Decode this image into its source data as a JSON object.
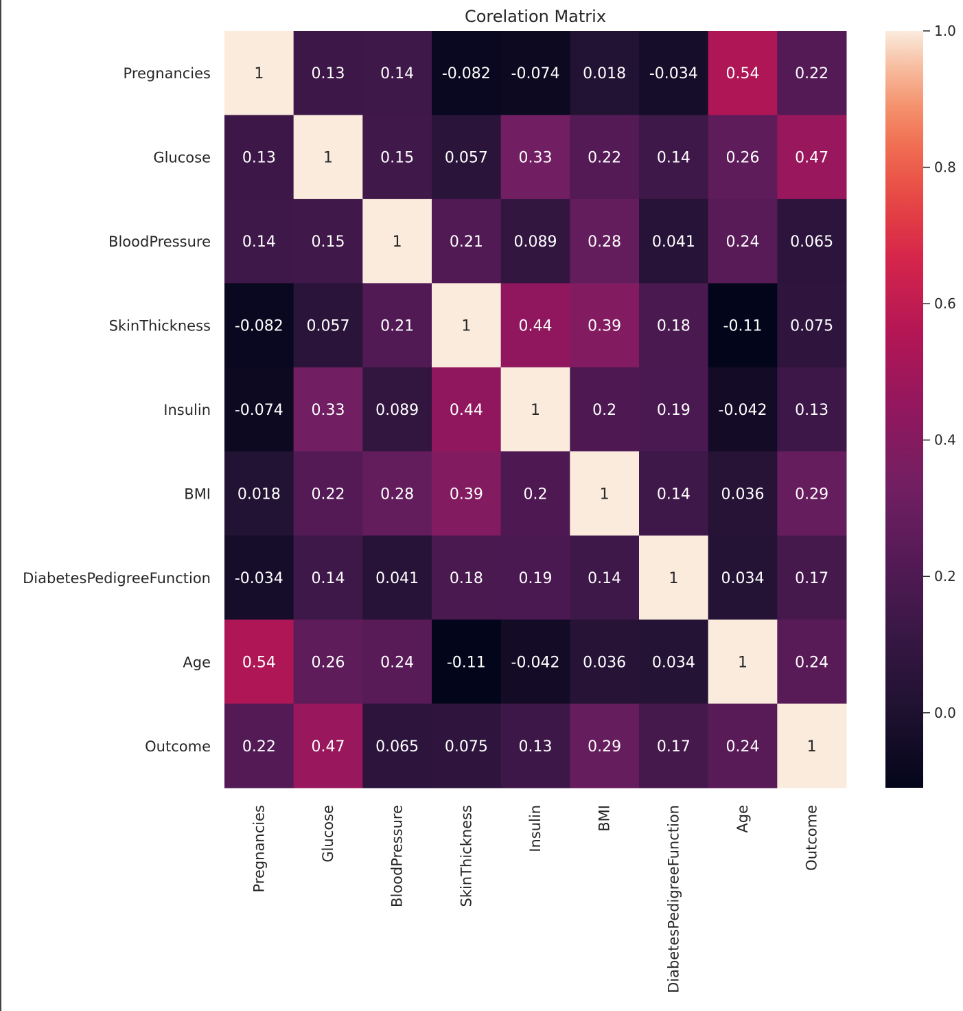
{
  "chart_data": {
    "type": "heatmap",
    "title": "Corelation Matrix",
    "xlabel": "",
    "ylabel": "",
    "labels": [
      "Pregnancies",
      "Glucose",
      "BloodPressure",
      "SkinThickness",
      "Insulin",
      "BMI",
      "DiabetesPedigreeFunction",
      "Age",
      "Outcome"
    ],
    "values": [
      [
        1,
        0.13,
        0.14,
        -0.082,
        -0.074,
        0.018,
        -0.034,
        0.54,
        0.22
      ],
      [
        0.13,
        1,
        0.15,
        0.057,
        0.33,
        0.22,
        0.14,
        0.26,
        0.47
      ],
      [
        0.14,
        0.15,
        1,
        0.21,
        0.089,
        0.28,
        0.041,
        0.24,
        0.065
      ],
      [
        -0.082,
        0.057,
        0.21,
        1,
        0.44,
        0.39,
        0.18,
        -0.11,
        0.075
      ],
      [
        -0.074,
        0.33,
        0.089,
        0.44,
        1,
        0.2,
        0.19,
        -0.042,
        0.13
      ],
      [
        0.018,
        0.22,
        0.28,
        0.39,
        0.2,
        1,
        0.14,
        0.036,
        0.29
      ],
      [
        -0.034,
        0.14,
        0.041,
        0.18,
        0.19,
        0.14,
        1,
        0.034,
        0.17
      ],
      [
        0.54,
        0.26,
        0.24,
        -0.11,
        -0.042,
        0.036,
        0.034,
        1,
        0.24
      ],
      [
        0.22,
        0.47,
        0.065,
        0.075,
        0.13,
        0.29,
        0.17,
        0.24,
        1
      ]
    ],
    "annotations": [
      [
        "1",
        "0.13",
        "0.14",
        "-0.082",
        "-0.074",
        "0.018",
        "-0.034",
        "0.54",
        "0.22"
      ],
      [
        "0.13",
        "1",
        "0.15",
        "0.057",
        "0.33",
        "0.22",
        "0.14",
        "0.26",
        "0.47"
      ],
      [
        "0.14",
        "0.15",
        "1",
        "0.21",
        "0.089",
        "0.28",
        "0.041",
        "0.24",
        "0.065"
      ],
      [
        "-0.082",
        "0.057",
        "0.21",
        "1",
        "0.44",
        "0.39",
        "0.18",
        "-0.11",
        "0.075"
      ],
      [
        "-0.074",
        "0.33",
        "0.089",
        "0.44",
        "1",
        "0.2",
        "0.19",
        "-0.042",
        "0.13"
      ],
      [
        "0.018",
        "0.22",
        "0.28",
        "0.39",
        "0.2",
        "1",
        "0.14",
        "0.036",
        "0.29"
      ],
      [
        "-0.034",
        "0.14",
        "0.041",
        "0.18",
        "0.19",
        "0.14",
        "1",
        "0.034",
        "0.17"
      ],
      [
        "0.54",
        "0.26",
        "0.24",
        "-0.11",
        "-0.042",
        "0.036",
        "0.034",
        "1",
        "0.24"
      ],
      [
        "0.22",
        "0.47",
        "0.065",
        "0.075",
        "0.13",
        "0.29",
        "0.17",
        "0.24",
        "1"
      ]
    ],
    "colormap": "rocket",
    "vmin": -0.11,
    "vmax": 1.0,
    "colorbar": {
      "ticks": [
        0.0,
        0.2,
        0.4,
        0.6,
        0.8,
        1.0
      ],
      "tick_labels": [
        "0.0",
        "0.2",
        "0.4",
        "0.6",
        "0.8",
        "1.0"
      ],
      "placement": "right"
    },
    "grid": false
  },
  "colors": {
    "text_dark": "#262626",
    "annotation_light": "#ffffff",
    "annotation_dark": "#262626"
  }
}
